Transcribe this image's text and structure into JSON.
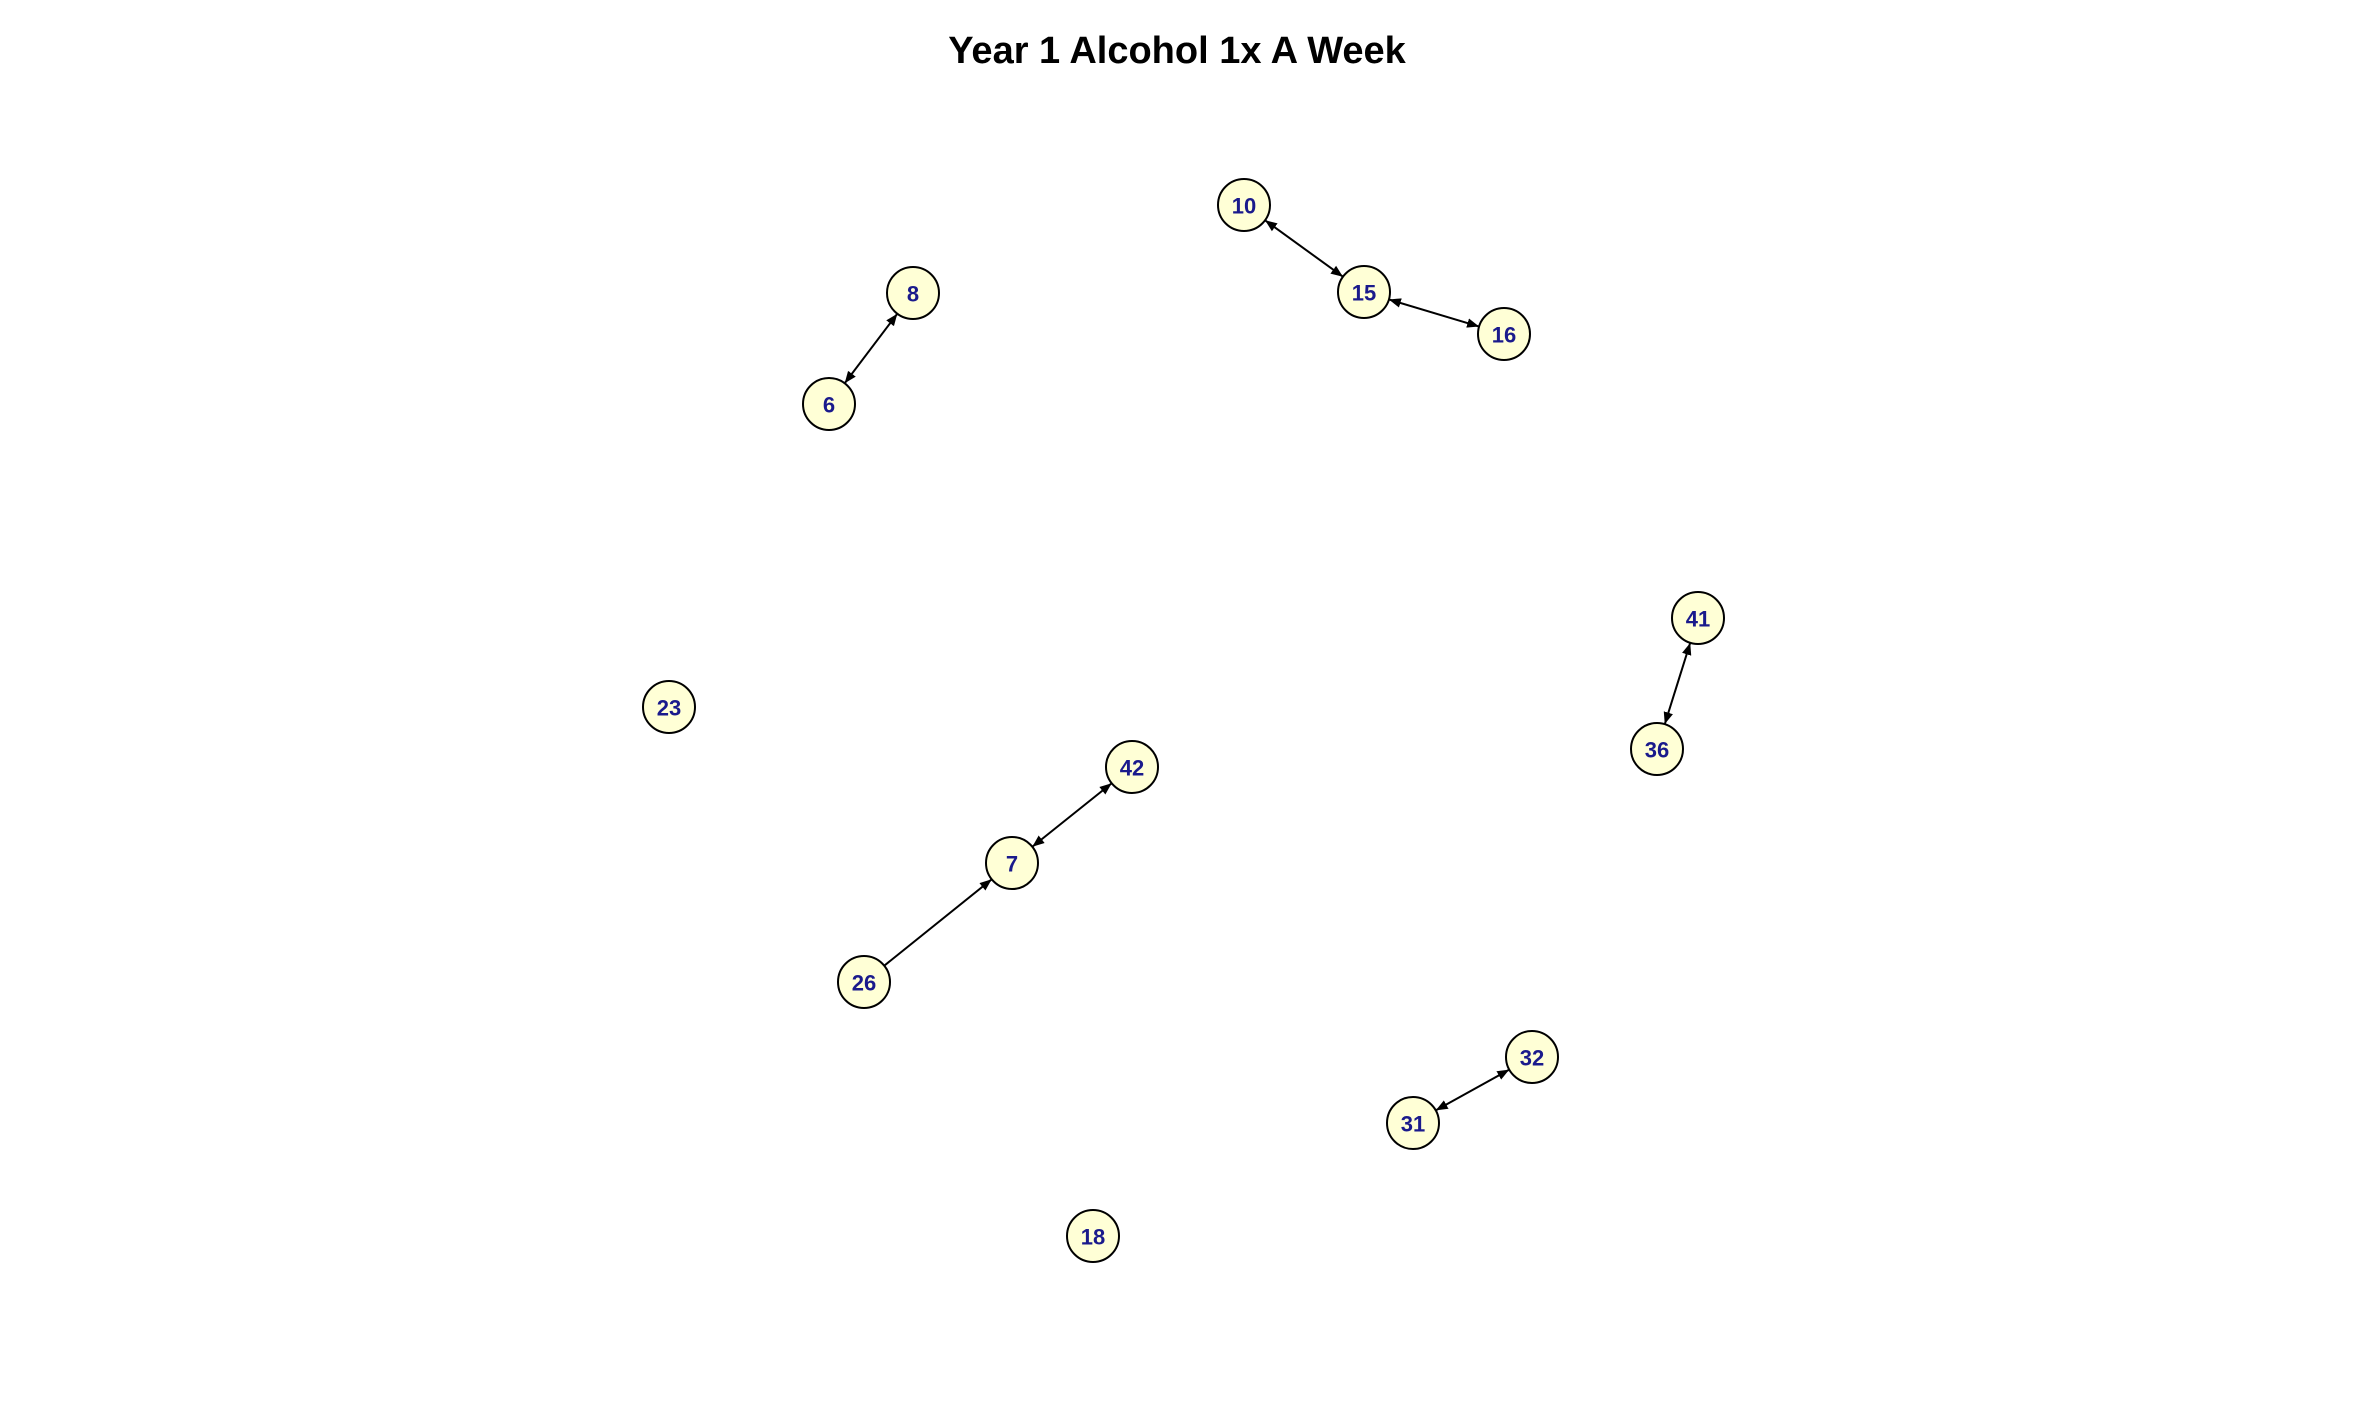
{
  "title": "Year 1 Alcohol 1x A Week",
  "colors": {
    "node_fill": "#ffffd6",
    "node_stroke": "#000000",
    "label_color": "#1a1a8c",
    "edge_color": "#000000"
  },
  "nodes": [
    {
      "id": "10"
    },
    {
      "id": "15"
    },
    {
      "id": "16"
    },
    {
      "id": "8"
    },
    {
      "id": "6"
    },
    {
      "id": "41"
    },
    {
      "id": "36"
    },
    {
      "id": "23"
    },
    {
      "id": "42"
    },
    {
      "id": "7"
    },
    {
      "id": "26"
    },
    {
      "id": "32"
    },
    {
      "id": "31"
    },
    {
      "id": "18"
    }
  ],
  "edges": [
    {
      "source": "10",
      "target": "15",
      "directed": "both"
    },
    {
      "source": "15",
      "target": "16",
      "directed": "both"
    },
    {
      "source": "8",
      "target": "6",
      "directed": "both"
    },
    {
      "source": "41",
      "target": "36",
      "directed": "both"
    },
    {
      "source": "42",
      "target": "7",
      "directed": "both"
    },
    {
      "source": "26",
      "target": "7",
      "directed": "forward"
    },
    {
      "source": "32",
      "target": "31",
      "directed": "both"
    }
  ]
}
